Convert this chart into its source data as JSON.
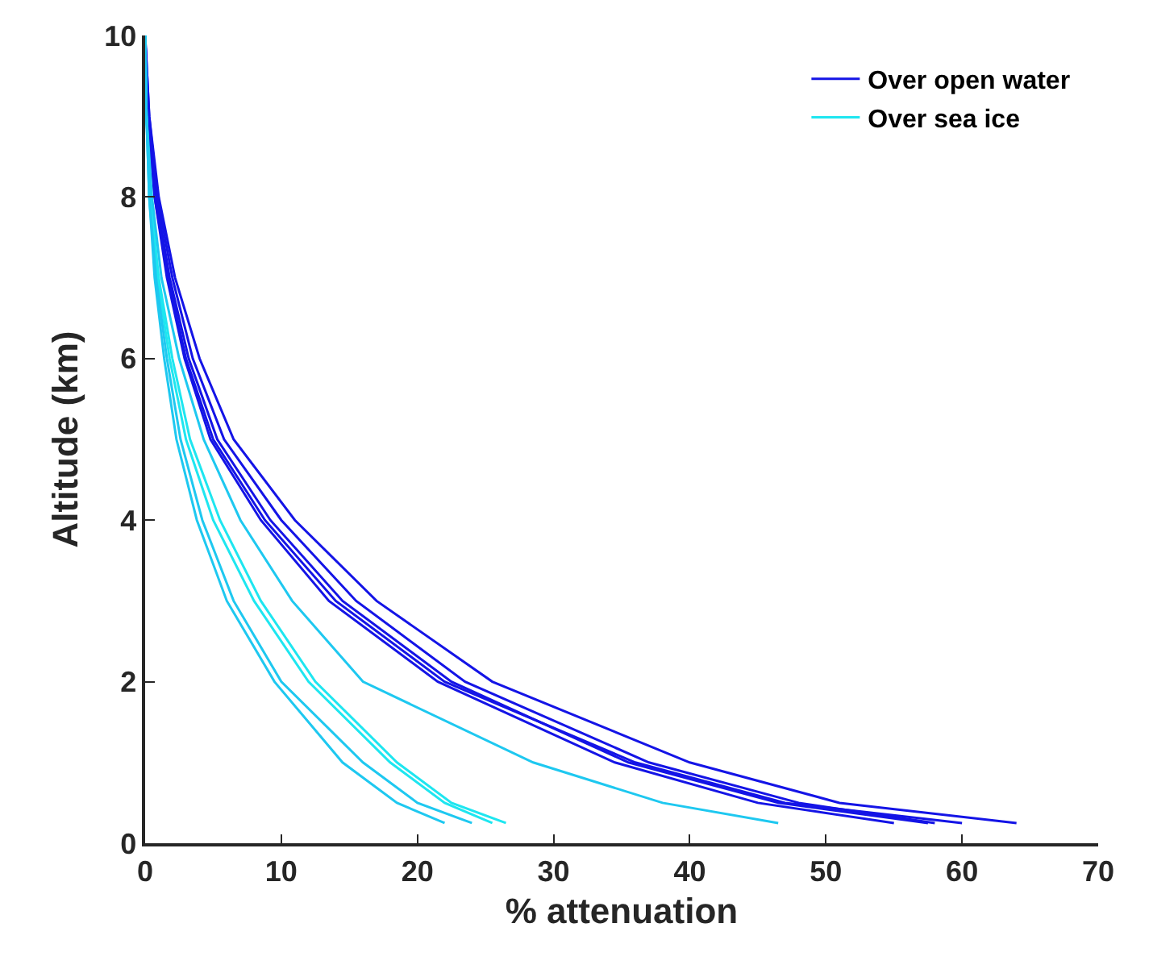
{
  "chart_data": {
    "type": "line",
    "xlabel": "% attenuation",
    "ylabel": "Altitude (km)",
    "xlim": [
      0,
      70
    ],
    "xticks": [
      0,
      10,
      20,
      30,
      40,
      50,
      60,
      70
    ],
    "ylim": [
      0,
      10
    ],
    "yticks": [
      0,
      2,
      4,
      6,
      8,
      10
    ],
    "legend": "top right",
    "line_style": "solid",
    "marker": "none",
    "series": [
      {
        "name": "Over open water",
        "color": "#1414e6",
        "x": [
          0,
          0.3,
          1,
          2.2,
          4,
          6.5,
          11,
          17,
          25.5,
          40,
          51,
          64
        ],
        "values": [
          10,
          9,
          8,
          7,
          6,
          5,
          4,
          3,
          2,
          1,
          0.5,
          0.25
        ]
      },
      {
        "color": "#1414e6",
        "x": [
          0,
          0.3,
          0.9,
          2,
          3.5,
          5.8,
          10,
          15.5,
          23.5,
          37,
          48,
          58
        ],
        "values": [
          10,
          9,
          8,
          7,
          6,
          5,
          4,
          3,
          2,
          1,
          0.5,
          0.25
        ]
      },
      {
        "color": "#1414e6",
        "x": [
          0,
          0.2,
          0.8,
          1.8,
          3.2,
          5.3,
          9.2,
          14.5,
          22.5,
          35.5,
          46.5,
          57.5
        ],
        "values": [
          10,
          9,
          8,
          7,
          6,
          5,
          4,
          3,
          2,
          1,
          0.5,
          0.25
        ]
      },
      {
        "color": "#1414e6",
        "x": [
          0,
          0.2,
          0.7,
          1.6,
          2.9,
          4.8,
          8.5,
          13.5,
          21.5,
          34.5,
          45,
          55
        ],
        "values": [
          10,
          9,
          8,
          7,
          6,
          5,
          4,
          3,
          2,
          1,
          0.5,
          0.25
        ]
      },
      {
        "color": "#1414e6",
        "x": [
          0,
          0.2,
          0.7,
          1.7,
          3,
          5,
          8.8,
          14,
          22,
          36,
          47,
          60
        ],
        "values": [
          10,
          9,
          8,
          7,
          6,
          5,
          4,
          3,
          2,
          1,
          0.5,
          0.25
        ]
      },
      {
        "name": "Over sea ice",
        "color": "#1ee6f0",
        "x": [
          0,
          0.1,
          0.4,
          1,
          2,
          3.3,
          5.5,
          8.5,
          12.5,
          18.5,
          22.5,
          26.5
        ],
        "values": [
          10,
          9,
          8,
          7,
          6,
          5,
          4,
          3,
          2,
          1,
          0.5,
          0.25
        ]
      },
      {
        "color": "#1ee6f0",
        "x": [
          0,
          0.1,
          0.4,
          0.9,
          1.8,
          3,
          5,
          8,
          12,
          18,
          22,
          25.5
        ],
        "values": [
          10,
          9,
          8,
          7,
          6,
          5,
          4,
          3,
          2,
          1,
          0.5,
          0.25
        ]
      },
      {
        "color": "#1ec8f0",
        "x": [
          0,
          0.1,
          0.3,
          0.8,
          1.6,
          2.6,
          4.2,
          6.5,
          10,
          16,
          20,
          24
        ],
        "values": [
          10,
          9,
          8,
          7,
          6,
          5,
          4,
          3,
          2,
          1,
          0.5,
          0.25
        ]
      },
      {
        "color": "#1ec8f0",
        "x": [
          0,
          0.1,
          0.3,
          0.7,
          1.4,
          2.3,
          3.8,
          6,
          9.5,
          14.5,
          18.5,
          22
        ],
        "values": [
          10,
          9,
          8,
          7,
          6,
          5,
          4,
          3,
          2,
          1,
          0.5,
          0.25
        ]
      },
      {
        "color": "#1ec8f0",
        "x": [
          0,
          0.1,
          0.5,
          1.2,
          2.5,
          4.3,
          7,
          10.8,
          16,
          28.5,
          38,
          46.5
        ],
        "values": [
          10,
          9,
          8,
          7,
          6,
          5,
          4,
          3,
          2,
          1,
          0.5,
          0.25
        ]
      }
    ]
  }
}
